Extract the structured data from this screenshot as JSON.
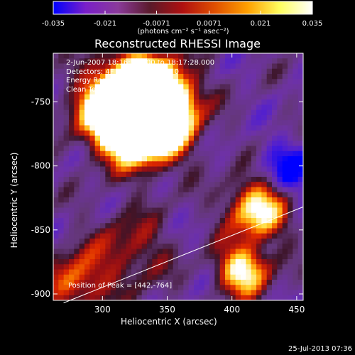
{
  "chart_data": {
    "type": "heatmap",
    "title": "Reconstructed RHESSI Image",
    "xlabel": "Heliocentric X (arcsec)",
    "ylabel": "Heliocentric Y (arcsec)",
    "xlim": [
      262,
      455
    ],
    "ylim": [
      -905,
      -712
    ],
    "x_ticks": [
      "300",
      "350",
      "400",
      "450"
    ],
    "y_ticks": [
      "-900",
      "-850",
      "-800",
      "-750"
    ],
    "colorbar": {
      "range": [
        -0.035,
        0.035
      ],
      "ticks": [
        "-0.035",
        "-0.021",
        "-0.0071",
        "0.0071",
        "0.021",
        "0.035"
      ],
      "units_label": "(photons cm⁻² s⁻¹ asec⁻²)",
      "colors": [
        "#0000ff",
        "#7a1fc8",
        "#8a3a9a",
        "#5a1a2a",
        "#b01010",
        "#e05000",
        "#ffa000",
        "#ffff60",
        "#ffffff"
      ]
    },
    "info_lines": [
      "2-Jun-2007 18:16:56.000 to 18:17:28.000",
      "Detectors: 4F 5F 6F 7F 8F, Att 0",
      "Energy Range: 3.0 - 6.0 keV",
      "Clean     Total counts: 2.55E+03"
    ],
    "peak_label": "Position of Peak = [442,-764]",
    "peak": {
      "x": 442,
      "y": -764
    },
    "limb_line": [
      [
        270,
        -907
      ],
      [
        455,
        -832
      ]
    ]
  },
  "footer": {
    "timestamp": "25-Jul-2013 07:36"
  }
}
